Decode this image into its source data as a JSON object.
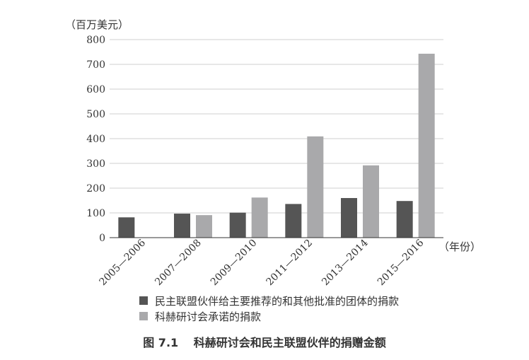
{
  "chart_data": {
    "type": "bar",
    "ylabel": "（百万美元）",
    "xlabel": "（年份）",
    "categories": [
      "2005—2006",
      "2007—2008",
      "2009—2010",
      "2011—2012",
      "2013—2014",
      "2015—2016"
    ],
    "series": [
      {
        "name": "民主联盟伙伴给主要推荐的和其他批准的团体的捐款",
        "color": "#555555",
        "values": [
          82,
          97,
          101,
          136,
          160,
          148
        ]
      },
      {
        "name": "科赫研讨会承诺的捐款",
        "color": "#a9a9ab",
        "values": [
          0,
          91,
          162,
          409,
          292,
          743
        ]
      }
    ],
    "ylim": [
      0,
      800
    ],
    "yticks": [
      "0",
      "100",
      "200",
      "300",
      "400",
      "500",
      "600",
      "700",
      "800"
    ],
    "grid": true,
    "legend_position": "bottom-left"
  },
  "caption": {
    "figure_number": "图 7.1",
    "title": "科赫研讨会和民主联盟伙伴的捐赠金额"
  }
}
